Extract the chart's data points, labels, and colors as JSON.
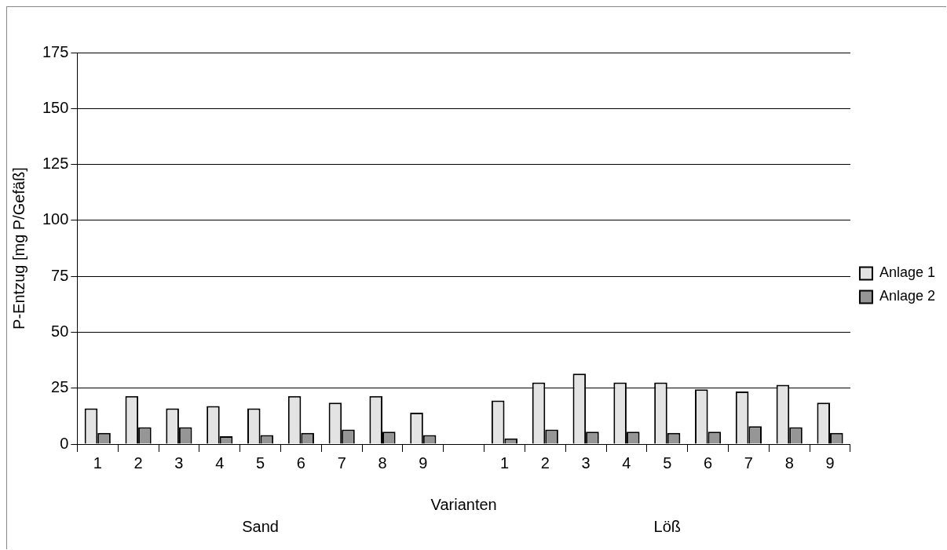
{
  "chart_data": {
    "type": "bar",
    "categories": [
      "1",
      "2",
      "3",
      "4",
      "5",
      "6",
      "7",
      "8",
      "9",
      null,
      "1",
      "2",
      "3",
      "4",
      "5",
      "6",
      "7",
      "8",
      "9"
    ],
    "series": [
      {
        "name": "Anlage 1",
        "color": "#e3e3e3",
        "values": [
          16,
          21.5,
          16,
          17,
          16,
          21.5,
          18.5,
          21.5,
          14,
          null,
          19.5,
          27.5,
          31.5,
          27.5,
          27.5,
          24.5,
          23.5,
          26.5,
          18.5
        ]
      },
      {
        "name": "Anlage 2",
        "color": "#969696",
        "values": [
          5,
          7.5,
          7.5,
          3.5,
          4,
          5,
          6.5,
          5.5,
          4,
          null,
          2.5,
          6.5,
          5.5,
          5.5,
          5,
          5.5,
          8,
          7.5,
          5
        ]
      }
    ],
    "xlabel": "Varianten",
    "ylabel": "P-Entzug [mg P/Gefäß]",
    "annotations": [
      "Sand",
      "Löß"
    ],
    "ylim": [
      0,
      175
    ],
    "yticks": [
      0,
      25,
      50,
      75,
      100,
      125,
      150,
      175
    ],
    "grid": "y",
    "legend": "right"
  }
}
